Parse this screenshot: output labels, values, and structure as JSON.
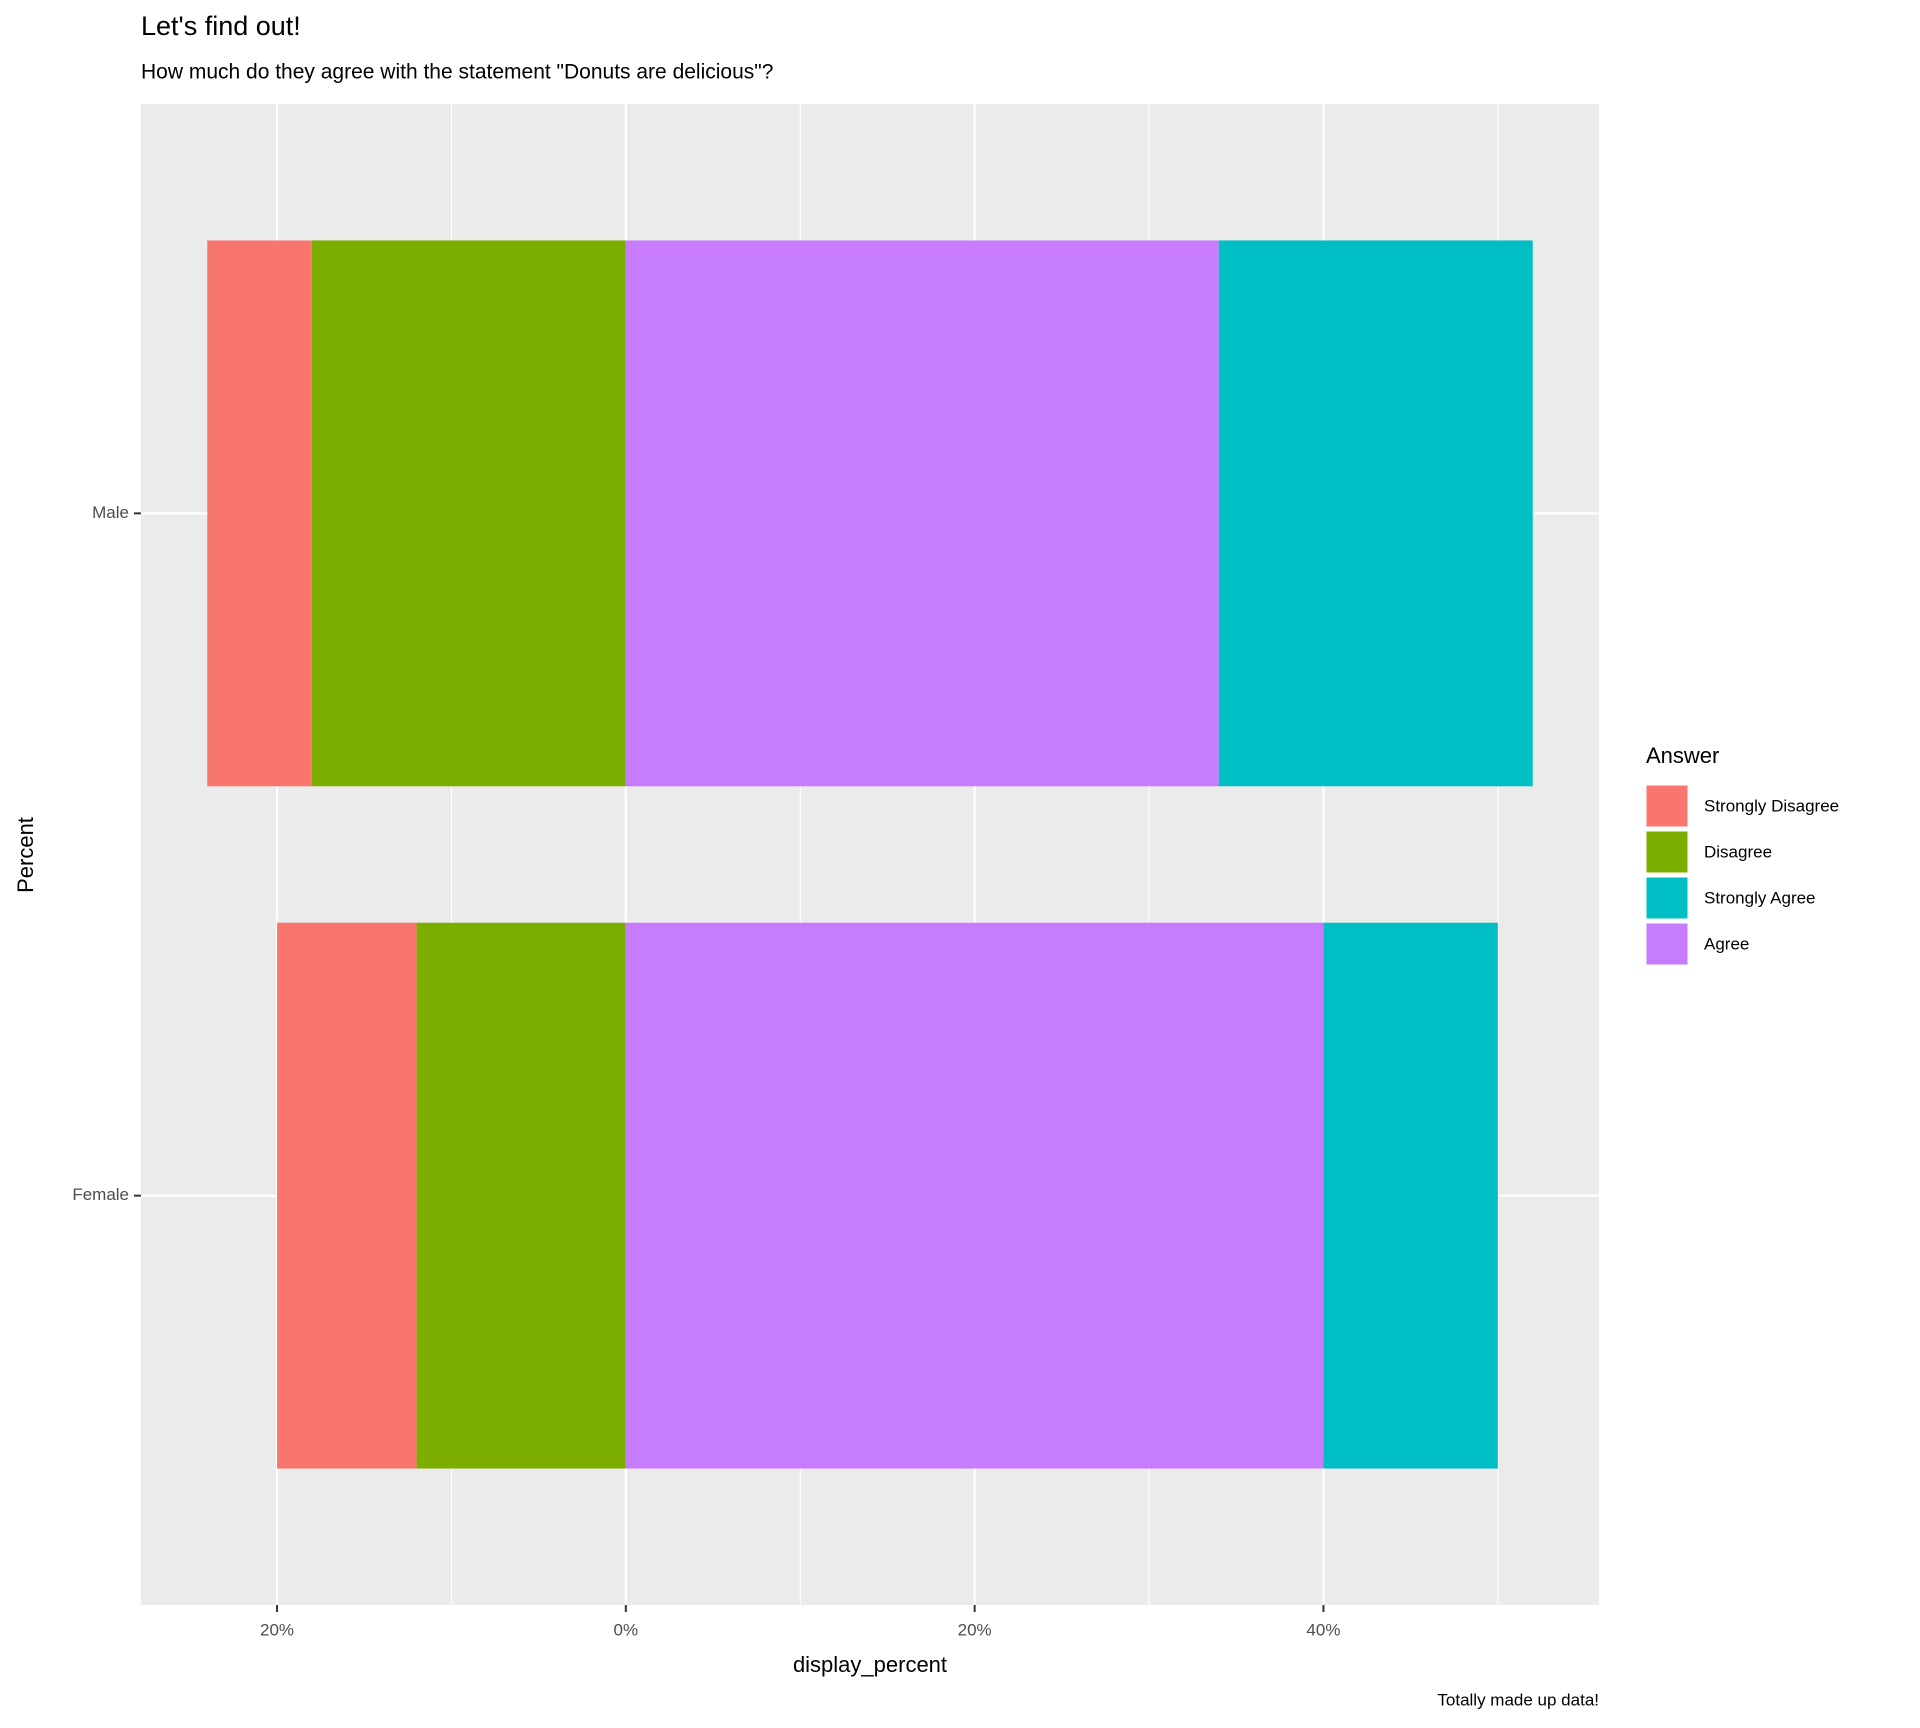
{
  "chart_data": {
    "type": "diverging_bar",
    "title": "Let's find out!",
    "subtitle": "How much do they agree with the statement \"Donuts are delicious\"?",
    "x_label": "display_percent",
    "y_label": "Percent",
    "caption": "Totally made up data!",
    "legend_title": "Answer",
    "legend": "right",
    "categories": [
      "Female",
      "Male"
    ],
    "series": [
      {
        "name": "Strongly Disagree",
        "color": "#F8766D",
        "values": [
          -8,
          -6
        ]
      },
      {
        "name": "Disagree",
        "color": "#7CAE00",
        "values": [
          -12,
          -18
        ]
      },
      {
        "name": "Strongly Agree",
        "color": "#00BFC4",
        "values": [
          10,
          18
        ]
      },
      {
        "name": "Agree",
        "color": "#C77CFF",
        "values": [
          40,
          34
        ]
      }
    ],
    "xlim": [
      -27.8,
      55.8
    ],
    "xticks": [
      {
        "value": -20,
        "label": "20%"
      },
      {
        "value": 0,
        "label": "0%"
      },
      {
        "value": 20,
        "label": "20%"
      },
      {
        "value": 40,
        "label": "40%"
      }
    ],
    "minor_xticks": [
      -10,
      10,
      30,
      50
    ],
    "grid": true
  }
}
